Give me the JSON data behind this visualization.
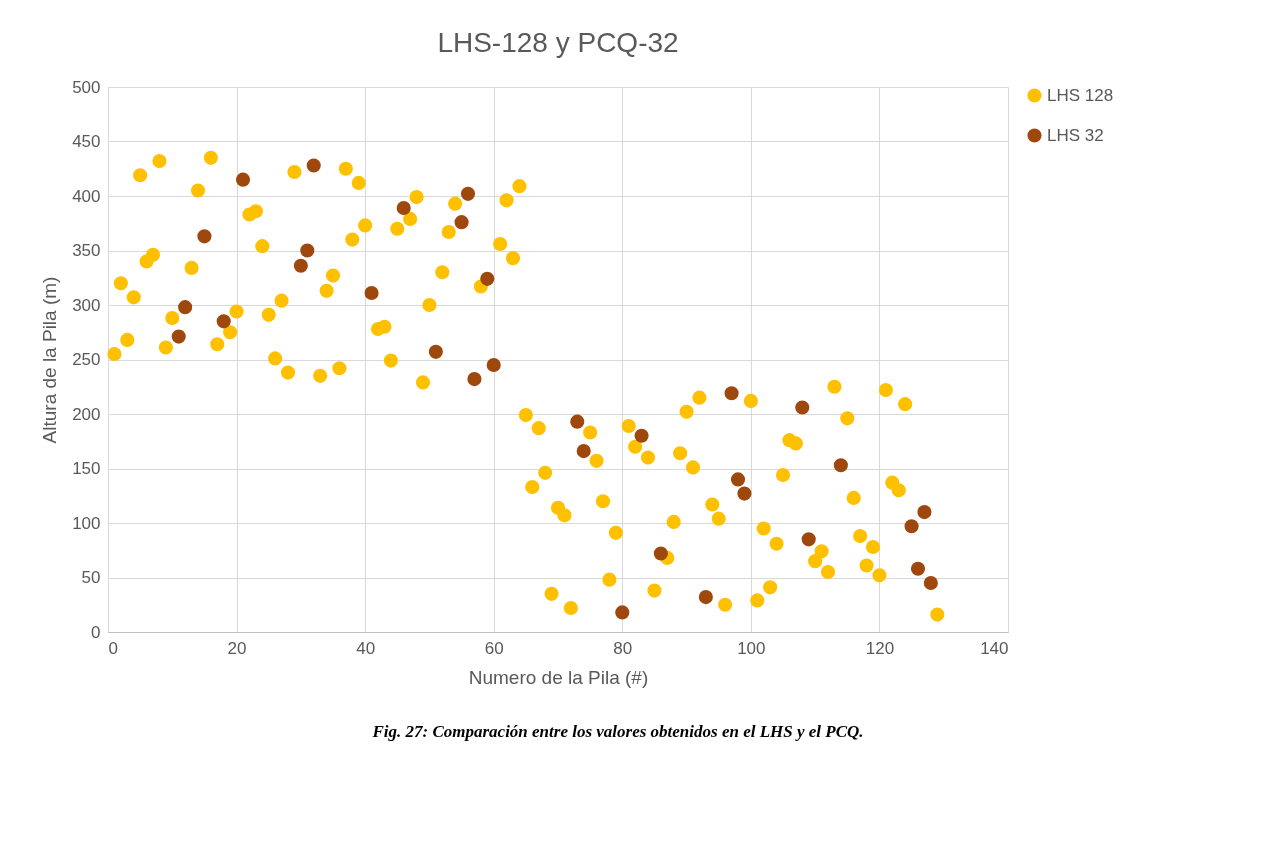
{
  "chart_data": {
    "type": "scatter",
    "title": "LHS-128 y PCQ-32",
    "xlabel": "Numero de la Pila (#)",
    "ylabel": "Altura de la Pila (m)",
    "xlim": [
      0,
      140
    ],
    "xticks": [
      0,
      20,
      40,
      60,
      80,
      100,
      120,
      140
    ],
    "ylim": [
      0,
      500
    ],
    "yticks": [
      0,
      50,
      100,
      150,
      200,
      250,
      300,
      350,
      400,
      450,
      500
    ],
    "grid": true,
    "legend": "right",
    "marker": "circle",
    "annotations": [
      "Fig. 27: Comparación entre los valores obtenidos en el LHS y el PCQ."
    ],
    "series": [
      {
        "name": "LHS 128",
        "color": "#ffc000",
        "x": [
          1,
          2,
          3,
          4,
          5,
          6,
          7,
          8,
          9,
          10,
          13,
          14,
          16,
          17,
          19,
          20,
          22,
          23,
          24,
          25,
          26,
          27,
          28,
          29,
          33,
          34,
          35,
          36,
          37,
          38,
          39,
          40,
          42,
          43,
          44,
          45,
          47,
          48,
          49,
          50,
          52,
          53,
          54,
          58,
          61,
          62,
          63,
          64,
          65,
          66,
          67,
          68,
          69,
          70,
          71,
          72,
          75,
          76,
          77,
          78,
          79,
          81,
          82,
          84,
          85,
          87,
          88,
          89,
          90,
          91,
          92,
          94,
          95,
          96,
          100,
          101,
          102,
          103,
          104,
          105,
          106,
          107,
          110,
          111,
          112,
          113,
          115,
          116,
          117,
          118,
          119,
          120,
          121,
          122,
          123,
          124,
          129
        ],
        "values": [
          255,
          320,
          268,
          307,
          419,
          340,
          346,
          432,
          261,
          288,
          334,
          405,
          435,
          264,
          275,
          294,
          383,
          386,
          354,
          291,
          251,
          304,
          238,
          422,
          235,
          313,
          327,
          242,
          425,
          360,
          412,
          373,
          278,
          280,
          249,
          370,
          379,
          399,
          229,
          300,
          330,
          367,
          393,
          317,
          356,
          396,
          343,
          409,
          199,
          133,
          187,
          146,
          35,
          114,
          107,
          22,
          183,
          157,
          120,
          48,
          91,
          189,
          170,
          160,
          38,
          68,
          101,
          164,
          202,
          151,
          215,
          117,
          104,
          25,
          212,
          29,
          95,
          41,
          81,
          144,
          176,
          173,
          65,
          74,
          55,
          225,
          196,
          123,
          88,
          61,
          78,
          52,
          222,
          137,
          130,
          209,
          16
        ]
      },
      {
        "name": "LHS 32",
        "color": "#9e480e",
        "x": [
          11,
          12,
          15,
          18,
          21,
          30,
          31,
          32,
          41,
          46,
          51,
          55,
          56,
          57,
          59,
          60,
          73,
          74,
          80,
          83,
          86,
          93,
          97,
          98,
          99,
          108,
          109,
          114,
          125,
          126,
          127,
          128
        ],
        "values": [
          271,
          298,
          363,
          285,
          415,
          336,
          350,
          428,
          311,
          389,
          257,
          376,
          402,
          232,
          324,
          245,
          193,
          166,
          18,
          180,
          72,
          32,
          219,
          140,
          127,
          206,
          85,
          153,
          97,
          58,
          110,
          45
        ]
      }
    ]
  }
}
